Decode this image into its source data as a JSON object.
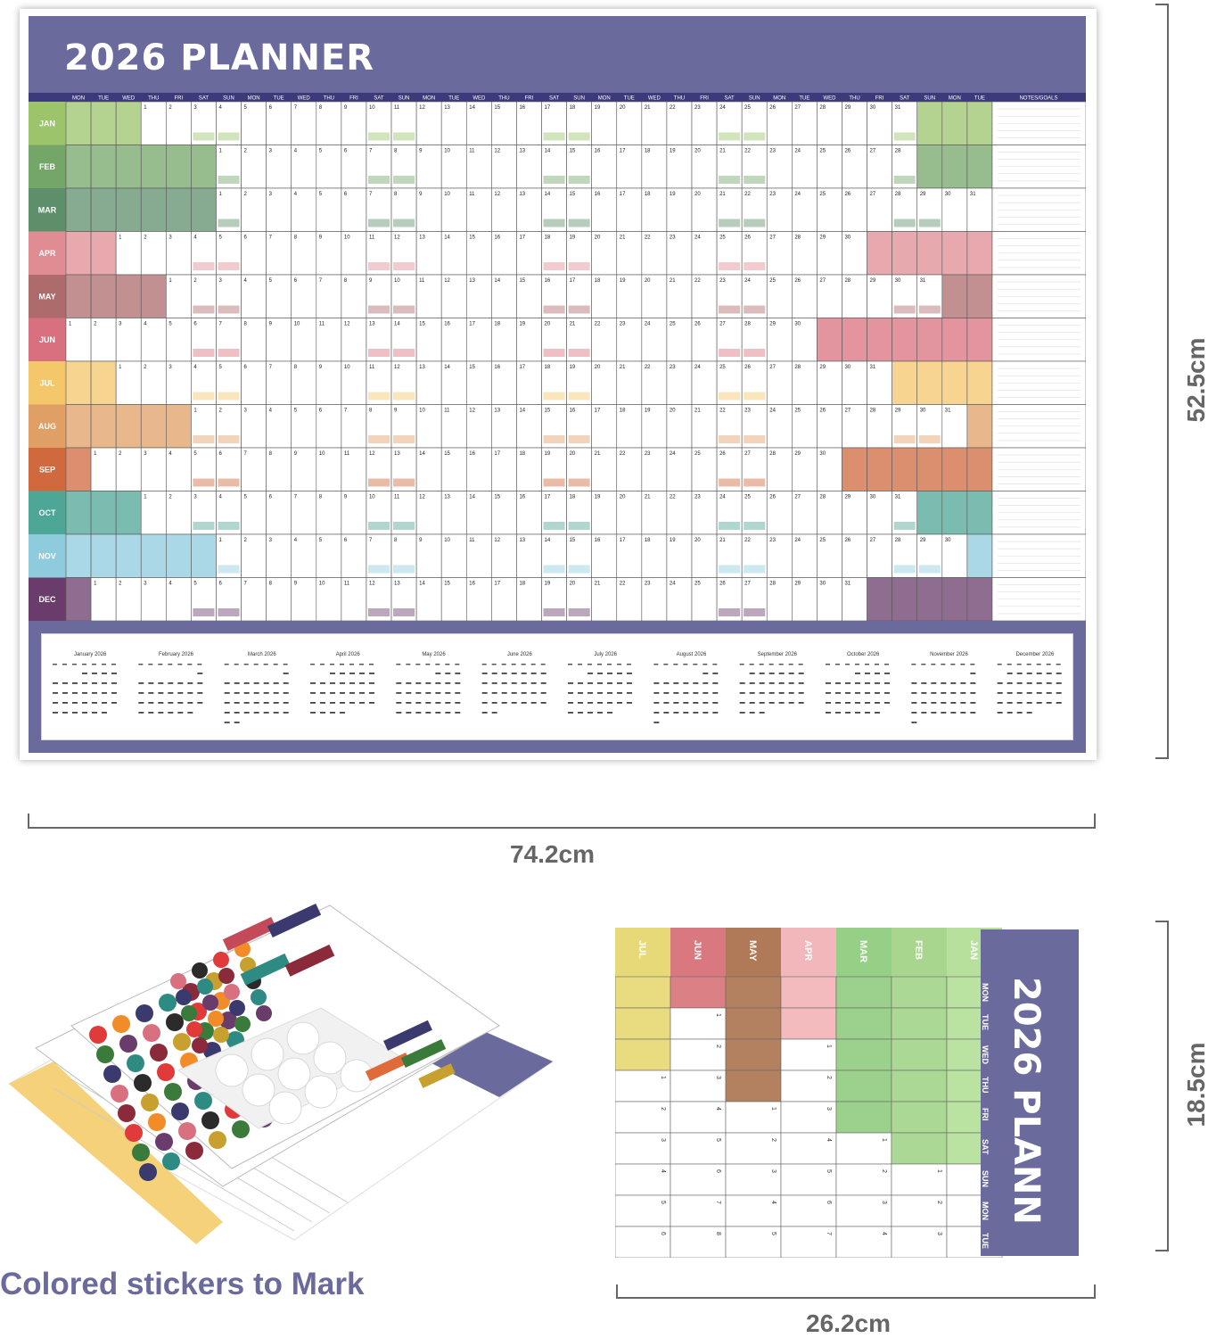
{
  "planner": {
    "title": "2026 PLANNER",
    "notes_header": "NOTES/GOALS",
    "weekday_header": [
      "MON",
      "TUE",
      "WED",
      "THU",
      "FRI",
      "SAT",
      "SUN",
      "MON",
      "TUE",
      "WED",
      "THU",
      "FRI",
      "SAT",
      "SUN",
      "MON",
      "TUE",
      "WED",
      "THU",
      "FRI",
      "SAT",
      "SUN",
      "MON",
      "TUE",
      "WED",
      "THU",
      "FRI",
      "SAT",
      "SUN",
      "MON",
      "TUE",
      "WED",
      "THU",
      "FRI",
      "SAT",
      "SUN",
      "MON",
      "TUE"
    ],
    "months": [
      {
        "label": "JAN",
        "color": "#9cc46b",
        "start": 3,
        "days": 31
      },
      {
        "label": "FEB",
        "color": "#74a667",
        "start": 6,
        "days": 28
      },
      {
        "label": "MAR",
        "color": "#5d8f6b",
        "start": 6,
        "days": 31
      },
      {
        "label": "APR",
        "color": "#e08c93",
        "start": 2,
        "days": 30
      },
      {
        "label": "MAY",
        "color": "#ad6b6b",
        "start": 4,
        "days": 31
      },
      {
        "label": "JUN",
        "color": "#d9707f",
        "start": 0,
        "days": 30
      },
      {
        "label": "JUL",
        "color": "#f4c76b",
        "start": 2,
        "days": 31
      },
      {
        "label": "AUG",
        "color": "#e0a065",
        "start": 5,
        "days": 31
      },
      {
        "label": "SEP",
        "color": "#d06a3e",
        "start": 1,
        "days": 30
      },
      {
        "label": "OCT",
        "color": "#4ea696",
        "start": 3,
        "days": 31
      },
      {
        "label": "NOV",
        "color": "#8ecbdd",
        "start": 6,
        "days": 30
      },
      {
        "label": "DEC",
        "color": "#6a3c6b",
        "start": 1,
        "days": 31
      }
    ],
    "mini_calendars": [
      "January 2026",
      "February 2026",
      "March 2026",
      "April 2026",
      "May 2026",
      "June 2026",
      "July 2026",
      "August 2026",
      "September 2026",
      "October 2026",
      "November 2026",
      "December 2026"
    ]
  },
  "dimensions": {
    "width_label": "74.2cm",
    "height_label": "52.5cm",
    "small_height_label": "18.5cm",
    "small_width_label": "26.2cm"
  },
  "stickers": {
    "caption": "Colored stickers to Mark"
  },
  "small_planner": {
    "title": "2026 PLANN",
    "month_labels": [
      "JUL",
      "JUN",
      "MAY",
      "APR",
      "MAR",
      "FEB",
      "JAN"
    ],
    "weekday_labels": [
      "MON",
      "TUE",
      "WED",
      "THU",
      "FRI",
      "SAT",
      "SUN",
      "MON",
      "TUE"
    ]
  },
  "colors": {
    "accent": "#6b6a9c",
    "header_bar": "#3c3a7a",
    "dim_line": "#666666"
  }
}
